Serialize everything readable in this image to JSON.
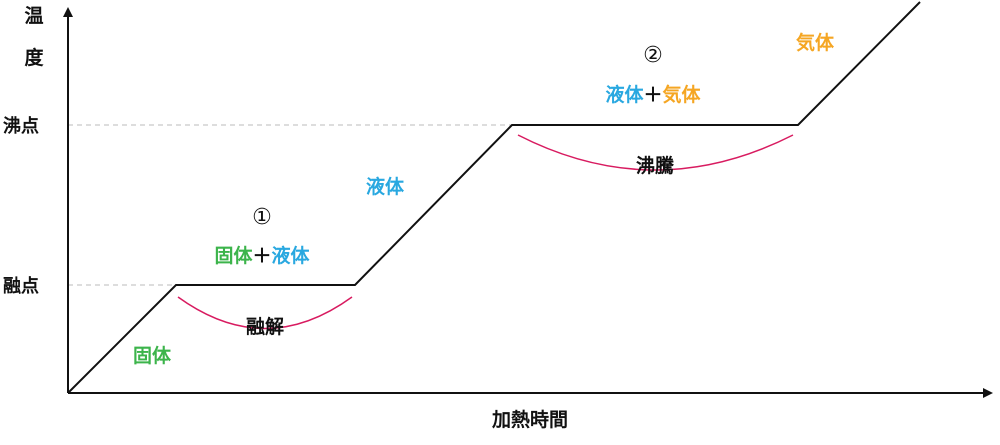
{
  "axes": {
    "y_label_chars": [
      "温",
      "度"
    ],
    "x_label": "加熱時間",
    "y_ticks": {
      "boiling": "沸点",
      "melting": "融点"
    }
  },
  "phases": {
    "solid": "固体",
    "liquid": "液体",
    "gas": "気体"
  },
  "mixtures": {
    "first": {
      "marker": "①",
      "left": "固体",
      "plus": "＋",
      "right": "液体"
    },
    "second": {
      "marker": "②",
      "left": "液体",
      "plus": "＋",
      "right": "気体"
    }
  },
  "processes": {
    "melting": "融解",
    "boiling": "沸騰"
  },
  "colors": {
    "solid": "#3cb44b",
    "liquid": "#29a8e0",
    "gas": "#f5a623",
    "text": "#111111",
    "curve": "#111111",
    "brace": "#d81b60",
    "guide": "#bbbbbb"
  }
}
